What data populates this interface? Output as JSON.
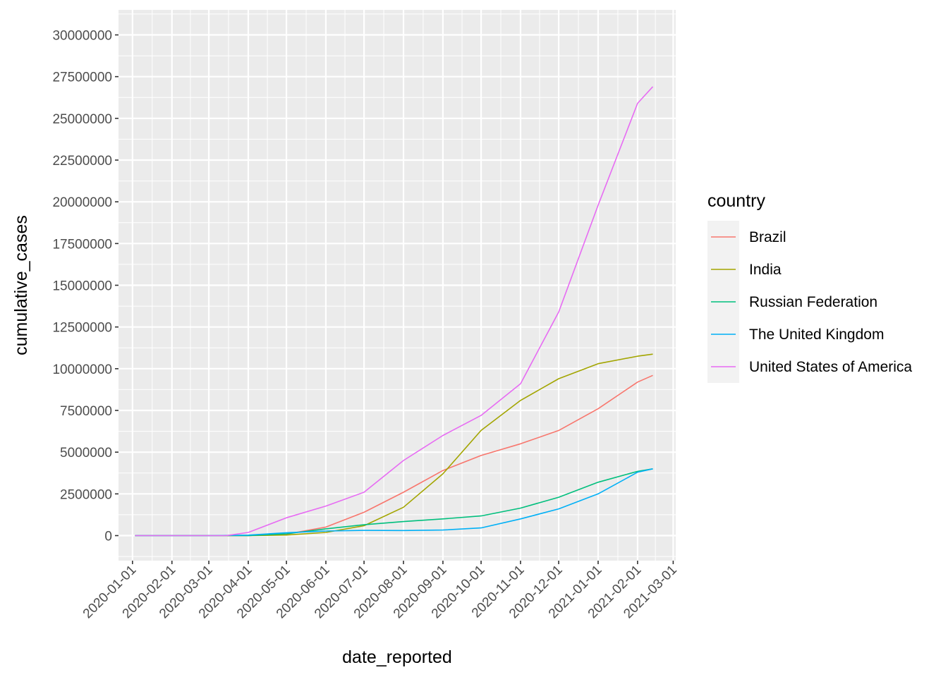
{
  "chart_data": {
    "type": "line",
    "xlabel": "date_reported",
    "ylabel": "cumulative_cases",
    "x_axis_type": "date",
    "xlim": [
      "2019-12-21",
      "2021-03-03"
    ],
    "ylim": [
      -1500000,
      31500000
    ],
    "grid": true,
    "legend_position": "right",
    "legend_title": "country",
    "x_ticks": [
      "2020-01-01",
      "2020-02-01",
      "2020-03-01",
      "2020-04-01",
      "2020-05-01",
      "2020-06-01",
      "2020-07-01",
      "2020-08-01",
      "2020-09-01",
      "2020-10-01",
      "2020-11-01",
      "2020-12-01",
      "2021-01-01",
      "2021-02-01",
      "2021-03-01"
    ],
    "y_ticks": [
      0,
      2500000,
      5000000,
      7500000,
      10000000,
      12500000,
      15000000,
      17500000,
      20000000,
      22500000,
      25000000,
      27500000,
      30000000
    ],
    "y_tick_labels": [
      "0",
      "2500000",
      "5000000",
      "7500000",
      "10000000",
      "12500000",
      "15000000",
      "17500000",
      "20000000",
      "22500000",
      "25000000",
      "27500000",
      "30000000"
    ],
    "series": [
      {
        "name": "Brazil",
        "color": "#F8766D",
        "x": [
          "2020-01-03",
          "2020-03-01",
          "2020-04-01",
          "2020-05-01",
          "2020-06-01",
          "2020-07-01",
          "2020-08-01",
          "2020-09-01",
          "2020-10-01",
          "2020-11-01",
          "2020-12-01",
          "2021-01-01",
          "2021-02-01",
          "2021-02-13"
        ],
        "y": [
          0,
          2,
          6000,
          90000,
          510000,
          1400000,
          2600000,
          3900000,
          4800000,
          5500000,
          6300000,
          7600000,
          9200000,
          9600000
        ]
      },
      {
        "name": "India",
        "color": "#A3A500",
        "x": [
          "2020-01-03",
          "2020-03-01",
          "2020-04-01",
          "2020-05-01",
          "2020-06-01",
          "2020-07-01",
          "2020-08-01",
          "2020-09-01",
          "2020-10-01",
          "2020-11-01",
          "2020-12-01",
          "2021-01-01",
          "2021-02-01",
          "2021-02-13"
        ],
        "y": [
          0,
          3,
          1600,
          35000,
          190000,
          590000,
          1700000,
          3700000,
          6300000,
          8100000,
          9400000,
          10300000,
          10750000,
          10870000
        ]
      },
      {
        "name": "Russian Federation",
        "color": "#00BF7D",
        "x": [
          "2020-01-03",
          "2020-03-01",
          "2020-04-01",
          "2020-05-01",
          "2020-06-01",
          "2020-07-01",
          "2020-08-01",
          "2020-09-01",
          "2020-10-01",
          "2020-11-01",
          "2020-12-01",
          "2021-01-01",
          "2021-02-01",
          "2021-02-13"
        ],
        "y": [
          0,
          2,
          2800,
          106000,
          405000,
          650000,
          840000,
          1000000,
          1180000,
          1650000,
          2300000,
          3200000,
          3850000,
          4000000
        ]
      },
      {
        "name": "The United Kingdom",
        "color": "#00B0F6",
        "x": [
          "2020-01-03",
          "2020-03-01",
          "2020-04-01",
          "2020-05-01",
          "2020-06-01",
          "2020-07-01",
          "2020-08-01",
          "2020-09-01",
          "2020-10-01",
          "2020-11-01",
          "2020-12-01",
          "2021-01-01",
          "2021-02-01",
          "2021-02-13"
        ],
        "y": [
          0,
          23,
          29000,
          172000,
          274000,
          313000,
          303000,
          335000,
          460000,
          1000000,
          1600000,
          2500000,
          3800000,
          4000000
        ]
      },
      {
        "name": "United States of America",
        "color": "#E76BF3",
        "x": [
          "2020-01-03",
          "2020-03-01",
          "2020-03-15",
          "2020-04-01",
          "2020-05-01",
          "2020-06-01",
          "2020-07-01",
          "2020-08-01",
          "2020-09-01",
          "2020-10-01",
          "2020-11-01",
          "2020-12-01",
          "2021-01-01",
          "2021-02-01",
          "2021-02-13"
        ],
        "y": [
          0,
          30,
          3500,
          190000,
          1070000,
          1770000,
          2600000,
          4500000,
          6000000,
          7200000,
          9100000,
          13400000,
          19800000,
          25900000,
          26900000
        ]
      }
    ]
  }
}
